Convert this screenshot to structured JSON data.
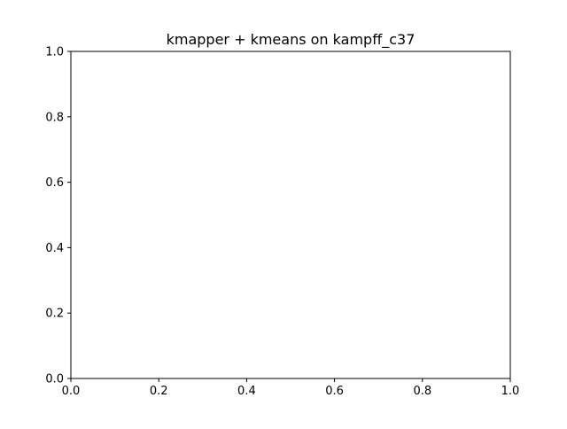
{
  "chart_data": {
    "type": "scatter",
    "title": "kmapper + kmeans on kampff_c37",
    "xlabel": "",
    "ylabel": "",
    "xlim": [
      0,
      1
    ],
    "ylim": [
      0,
      1
    ],
    "xticks": [
      "0.0",
      "0.2",
      "0.4",
      "0.6",
      "0.8",
      "1.0"
    ],
    "yticks": [
      "0.0",
      "0.2",
      "0.4",
      "0.6",
      "0.8",
      "1.0"
    ],
    "grid": false,
    "series": []
  }
}
